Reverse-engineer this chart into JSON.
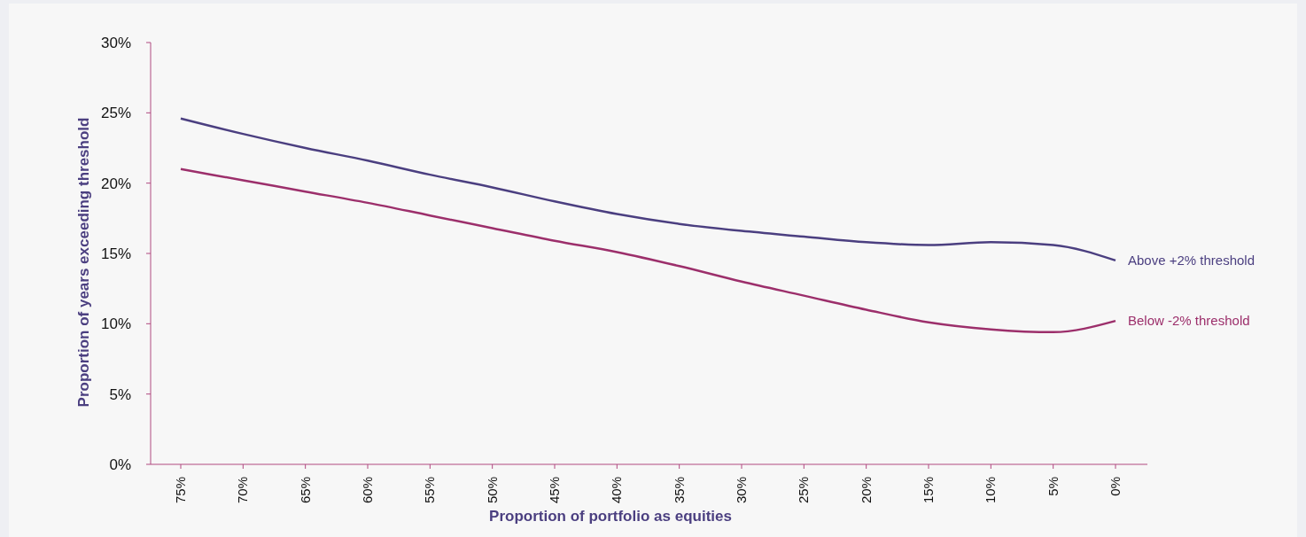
{
  "chart_data": {
    "type": "line",
    "xlabel": "Proportion of portfolio as equities",
    "ylabel": "Proportion of years exceeding threshold",
    "categories": [
      "75%",
      "70%",
      "65%",
      "60%",
      "55%",
      "50%",
      "45%",
      "40%",
      "35%",
      "30%",
      "25%",
      "20%",
      "15%",
      "10%",
      "5%",
      "0%"
    ],
    "series": [
      {
        "name": "Above +2% threshold",
        "color": "#4b3f80",
        "values": [
          24.6,
          23.5,
          22.5,
          21.6,
          20.6,
          19.7,
          18.7,
          17.8,
          17.1,
          16.6,
          16.2,
          15.8,
          15.6,
          15.8,
          15.6,
          14.5
        ]
      },
      {
        "name": "Below -2% threshold",
        "color": "#9c2f6b",
        "values": [
          21.0,
          20.2,
          19.4,
          18.6,
          17.7,
          16.8,
          15.9,
          15.1,
          14.1,
          13.0,
          12.0,
          11.0,
          10.1,
          9.6,
          9.4,
          10.2
        ]
      }
    ],
    "ylim": [
      0,
      30
    ],
    "yticks": [
      {
        "value": 0,
        "label": "0%"
      },
      {
        "value": 5,
        "label": "5%"
      },
      {
        "value": 10,
        "label": "10%"
      },
      {
        "value": 15,
        "label": "15%"
      },
      {
        "value": 20,
        "label": "20%"
      },
      {
        "value": 25,
        "label": "25%"
      },
      {
        "value": 30,
        "label": "30%"
      }
    ],
    "grid": false,
    "marker": "none",
    "line_style": "solid"
  }
}
